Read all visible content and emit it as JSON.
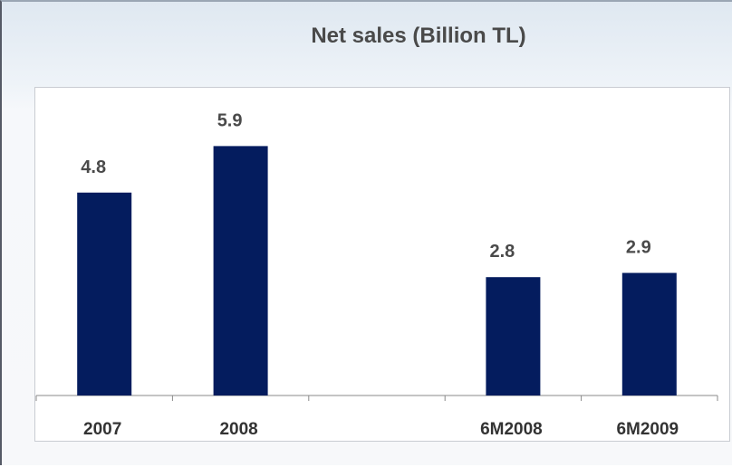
{
  "chart_data": {
    "type": "bar",
    "title": "Net sales (Billion TL)",
    "xlabel": "",
    "ylabel": "",
    "categories": [
      "2007",
      "2008",
      "",
      "6M2008",
      "6M2009"
    ],
    "values": [
      4.8,
      5.9,
      null,
      2.8,
      2.9
    ],
    "value_labels": [
      "4.8",
      "5.9",
      "",
      "2.8",
      "2.9"
    ],
    "ylim": [
      0,
      7.3
    ],
    "grid": false,
    "bar_color": "#041c5e"
  }
}
